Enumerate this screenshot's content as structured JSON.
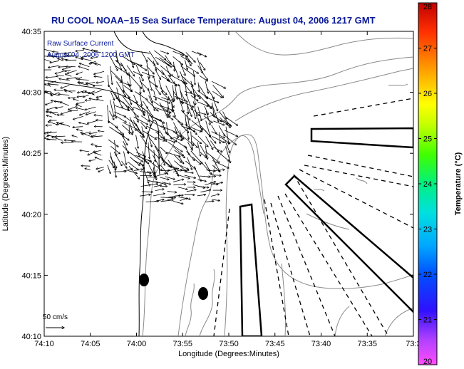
{
  "title": "RU COOL  NOAA−15  Sea Surface Temperature:  August 04, 2006 1217 GMT",
  "legend": {
    "line1": "Raw Surface Current",
    "line2": "August 04, 2006 1200 GMT"
  },
  "x_axis": {
    "label": "Longitude (Degrees:Minutes)",
    "ticks": [
      "74:10",
      "74:05",
      "74:00",
      "73:55",
      "73:50",
      "73:45",
      "73:40",
      "73:35",
      "73:3"
    ]
  },
  "y_axis": {
    "label": "Latitude (Degrees:Minutes)",
    "ticks": [
      "40:10",
      "40:15",
      "40:20",
      "40:25",
      "40:30",
      "40:35"
    ]
  },
  "scale": {
    "label": "50 cm/s"
  },
  "colorbar": {
    "label": "Temperature (°C)",
    "ticks": [
      "20",
      "21",
      "22",
      "23",
      "24",
      "25",
      "26",
      "27",
      "28"
    ],
    "min": 20,
    "max": 28,
    "colors": [
      "#ff4dff",
      "#8a2be2",
      "#0000ff",
      "#00bfff",
      "#00e5c0",
      "#3cff00",
      "#ffff00",
      "#ff8c00",
      "#cc0000"
    ]
  },
  "colors": {
    "title": "#0a1a9a",
    "coastline": "#000000",
    "contours": "#8a8a8a",
    "vectors": "#000000"
  }
}
